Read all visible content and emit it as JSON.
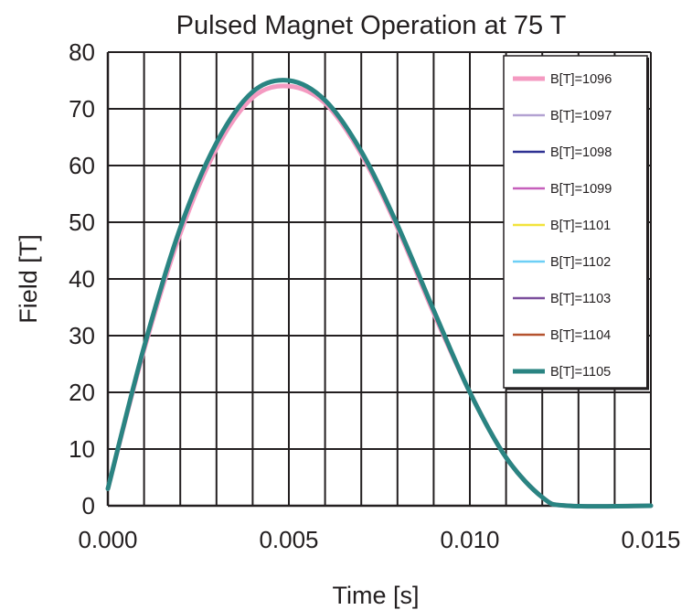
{
  "chart_data": {
    "type": "line",
    "title": "Pulsed Magnet Operation at 75 T",
    "xlabel": "Time [s]",
    "ylabel": "Field [T]",
    "xlim": [
      0,
      0.015
    ],
    "ylim": [
      0,
      80
    ],
    "x_ticks": [
      "0.000",
      "0.005",
      "0.010",
      "0.015"
    ],
    "y_ticks": [
      "0",
      "10",
      "20",
      "30",
      "40",
      "50",
      "60",
      "70",
      "80"
    ],
    "grid": true,
    "legend_position": "top-right",
    "series": [
      {
        "name": "B[T]=1096",
        "color": "#f49ac1",
        "x": [
          0,
          0.001,
          0.002,
          0.003,
          0.004,
          0.005,
          0.006,
          0.007,
          0.008,
          0.009,
          0.01,
          0.011,
          0.012,
          0.0127,
          0.015
        ],
        "y": [
          3,
          27.5,
          48,
          63,
          72,
          74,
          71,
          62,
          49,
          34,
          20,
          8.5,
          1.5,
          0,
          0
        ]
      },
      {
        "name": "B[T]=1097",
        "color": "#b3a2d2",
        "x": [
          0,
          0.001,
          0.002,
          0.003,
          0.004,
          0.005,
          0.006,
          0.007,
          0.008,
          0.009,
          0.01,
          0.011,
          0.012,
          0.0127,
          0.015
        ],
        "y": [
          3,
          28,
          49,
          64,
          73,
          75,
          71.5,
          62.5,
          49.5,
          34.5,
          20,
          8.5,
          1.5,
          0,
          0
        ]
      },
      {
        "name": "B[T]=1098",
        "color": "#2e3192",
        "x": [
          0,
          0.001,
          0.002,
          0.003,
          0.004,
          0.005,
          0.006,
          0.007,
          0.008,
          0.009,
          0.01,
          0.011,
          0.012,
          0.0127,
          0.015
        ],
        "y": [
          3,
          28,
          49,
          64,
          73,
          75,
          71.5,
          62.5,
          49.5,
          34.5,
          20,
          8.5,
          1.5,
          0,
          0
        ]
      },
      {
        "name": "B[T]=1099",
        "color": "#c65fbb",
        "x": [
          0,
          0.001,
          0.002,
          0.003,
          0.004,
          0.005,
          0.006,
          0.007,
          0.008,
          0.009,
          0.01,
          0.011,
          0.012,
          0.0127,
          0.015
        ],
        "y": [
          3,
          28,
          49,
          64,
          73,
          75,
          71.5,
          62.5,
          49.5,
          34.5,
          20,
          8.5,
          1.5,
          0,
          0
        ]
      },
      {
        "name": "B[T]=1101",
        "color": "#f2e33c",
        "x": [
          0,
          0.001,
          0.002,
          0.003,
          0.004,
          0.005,
          0.006,
          0.007,
          0.008,
          0.009,
          0.01,
          0.011,
          0.012,
          0.0127,
          0.015
        ],
        "y": [
          3,
          28,
          49,
          64,
          73,
          75,
          71.5,
          62.5,
          49.5,
          34.5,
          20,
          8.5,
          1.5,
          0,
          0
        ]
      },
      {
        "name": "B[T]=1102",
        "color": "#6dcff6",
        "x": [
          0,
          0.001,
          0.002,
          0.003,
          0.004,
          0.005,
          0.006,
          0.007,
          0.008,
          0.009,
          0.01,
          0.011,
          0.012,
          0.0127,
          0.015
        ],
        "y": [
          3,
          28,
          49,
          64,
          73,
          75,
          71.5,
          62.5,
          49.5,
          34.5,
          20,
          8.5,
          1.5,
          0,
          0
        ]
      },
      {
        "name": "B[T]=1103",
        "color": "#7b4f9d",
        "x": [
          0,
          0.001,
          0.002,
          0.003,
          0.004,
          0.005,
          0.006,
          0.007,
          0.008,
          0.009,
          0.01,
          0.011,
          0.012,
          0.0127,
          0.015
        ],
        "y": [
          3,
          28,
          49,
          64,
          73,
          75,
          71.5,
          62.5,
          49.5,
          34.5,
          20,
          8.5,
          1.5,
          0,
          0
        ]
      },
      {
        "name": "B[T]=1104",
        "color": "#b5532f",
        "x": [
          0,
          0.001,
          0.002,
          0.003,
          0.004,
          0.005,
          0.006,
          0.007,
          0.008,
          0.009,
          0.01,
          0.011,
          0.012,
          0.0127,
          0.015
        ],
        "y": [
          3,
          28,
          49,
          64,
          73,
          75,
          71.5,
          62.5,
          49.5,
          34.5,
          20,
          8.5,
          1.5,
          0,
          0
        ]
      },
      {
        "name": "B[T]=1105",
        "color": "#2a8482",
        "x": [
          0,
          0.001,
          0.002,
          0.003,
          0.004,
          0.005,
          0.006,
          0.007,
          0.008,
          0.009,
          0.01,
          0.011,
          0.012,
          0.0127,
          0.015
        ],
        "y": [
          3,
          28,
          49,
          64,
          73,
          75,
          71.5,
          62.5,
          49.5,
          34.5,
          20,
          8.5,
          1.5,
          0,
          0
        ]
      }
    ]
  }
}
